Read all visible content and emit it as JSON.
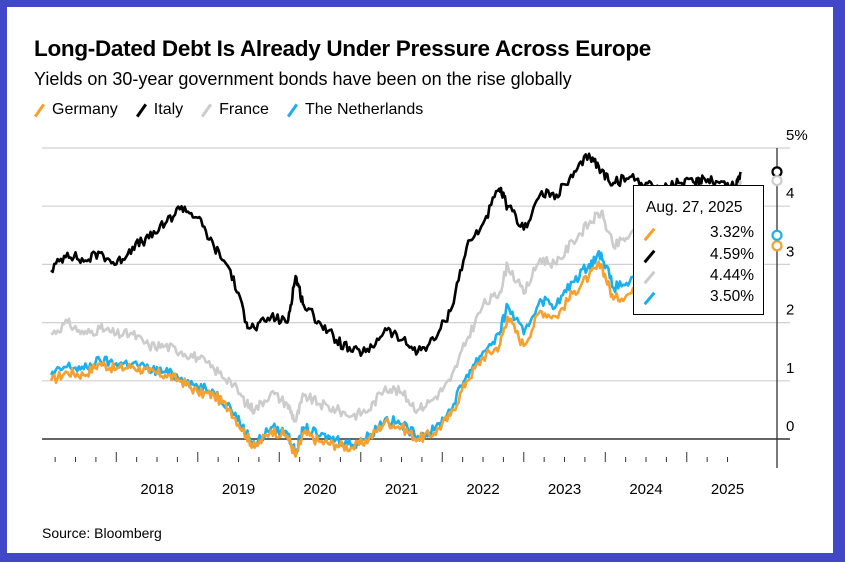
{
  "header": {
    "title": "Long-Dated Debt Is Already Under Pressure Across Europe",
    "subtitle": "Yields on 30-year government bonds have been on the rise globally"
  },
  "source": "Source: Bloomberg",
  "colors": {
    "germany": "#f7a02d",
    "italy": "#000000",
    "france": "#cccccc",
    "netherlands": "#1ab0f0",
    "grid": "#d0d0d0",
    "zero_line": "#333333",
    "frame": "#4048c8"
  },
  "tooltip": {
    "date": "Aug. 27, 2025",
    "rows": [
      {
        "series": "Germany",
        "value": "3.32%"
      },
      {
        "series": "Italy",
        "value": "4.59%"
      },
      {
        "series": "France",
        "value": "4.44%"
      },
      {
        "series": "The Netherlands",
        "value": "3.50%"
      }
    ]
  },
  "chart_data": {
    "type": "line",
    "title": "Long-Dated Debt Is Already Under Pressure Across Europe",
    "subtitle": "Yields on 30-year government bonds have been on the rise globally",
    "xlabel": "",
    "ylabel": "",
    "x_tick_labels": [
      "2018",
      "2019",
      "2020",
      "2021",
      "2022",
      "2023",
      "2024",
      "2025"
    ],
    "y_tick_labels": [
      "0",
      "1",
      "2",
      "3",
      "4",
      "5%"
    ],
    "ylim": [
      -0.5,
      5.2
    ],
    "xlim": [
      2017.15,
      2025.75
    ],
    "grid": true,
    "legend_position": "top-left",
    "x": [
      2017.2,
      2017.4,
      2017.6,
      2017.8,
      2018.0,
      2018.2,
      2018.4,
      2018.6,
      2018.8,
      2019.0,
      2019.2,
      2019.4,
      2019.6,
      2019.7,
      2019.9,
      2020.1,
      2020.2,
      2020.3,
      2020.5,
      2020.7,
      2020.9,
      2021.1,
      2021.3,
      2021.5,
      2021.7,
      2021.9,
      2022.1,
      2022.3,
      2022.5,
      2022.7,
      2022.8,
      2023.0,
      2023.2,
      2023.4,
      2023.6,
      2023.8,
      2023.95,
      2024.1,
      2024.3,
      2024.5,
      2024.7,
      2024.9,
      2025.1,
      2025.2,
      2025.4,
      2025.6,
      2025.66
    ],
    "series": [
      {
        "name": "Germany",
        "color": "#f7a02d",
        "values": [
          1.0,
          1.15,
          1.1,
          1.3,
          1.2,
          1.25,
          1.15,
          1.1,
          1.0,
          0.8,
          0.75,
          0.5,
          0.05,
          -0.15,
          0.15,
          0.05,
          -0.3,
          0.1,
          -0.05,
          -0.1,
          -0.15,
          0.0,
          0.3,
          0.2,
          0.0,
          0.1,
          0.4,
          1.0,
          1.4,
          1.6,
          2.1,
          1.6,
          2.2,
          2.1,
          2.5,
          2.8,
          3.0,
          2.4,
          2.5,
          2.6,
          2.4,
          2.3,
          2.5,
          2.8,
          3.0,
          3.1,
          3.32
        ]
      },
      {
        "name": "Italy",
        "color": "#000000",
        "values": [
          2.9,
          3.2,
          3.05,
          3.2,
          3.0,
          3.3,
          3.45,
          3.7,
          4.0,
          3.8,
          3.3,
          2.9,
          2.0,
          1.9,
          2.1,
          2.0,
          2.8,
          2.3,
          2.0,
          1.7,
          1.5,
          1.5,
          1.9,
          1.7,
          1.5,
          1.7,
          2.2,
          3.3,
          3.7,
          4.3,
          4.0,
          3.6,
          4.2,
          4.2,
          4.5,
          4.9,
          4.6,
          4.4,
          4.5,
          4.4,
          4.3,
          4.4,
          4.4,
          4.5,
          4.4,
          4.35,
          4.59
        ]
      },
      {
        "name": "France",
        "color": "#cccccc",
        "values": [
          1.8,
          2.0,
          1.8,
          1.9,
          1.8,
          1.8,
          1.6,
          1.6,
          1.5,
          1.4,
          1.2,
          1.0,
          0.6,
          0.5,
          0.8,
          0.6,
          0.3,
          0.75,
          0.6,
          0.5,
          0.4,
          0.5,
          0.9,
          0.8,
          0.5,
          0.7,
          1.0,
          1.7,
          2.3,
          2.5,
          3.0,
          2.5,
          3.1,
          3.0,
          3.4,
          3.7,
          3.9,
          3.3,
          3.5,
          3.6,
          3.4,
          3.3,
          3.5,
          3.7,
          3.9,
          4.1,
          4.44
        ]
      },
      {
        "name": "The Netherlands",
        "color": "#1ab0f0",
        "values": [
          1.1,
          1.25,
          1.2,
          1.35,
          1.3,
          1.3,
          1.2,
          1.15,
          1.05,
          0.9,
          0.8,
          0.55,
          0.1,
          -0.1,
          0.2,
          0.1,
          -0.25,
          0.2,
          0.05,
          0.0,
          -0.1,
          0.05,
          0.35,
          0.25,
          0.05,
          0.15,
          0.5,
          1.1,
          1.5,
          1.8,
          2.3,
          1.8,
          2.4,
          2.3,
          2.7,
          3.0,
          3.2,
          2.6,
          2.7,
          2.8,
          2.6,
          2.5,
          2.7,
          3.0,
          3.2,
          3.3,
          3.5
        ]
      }
    ]
  }
}
